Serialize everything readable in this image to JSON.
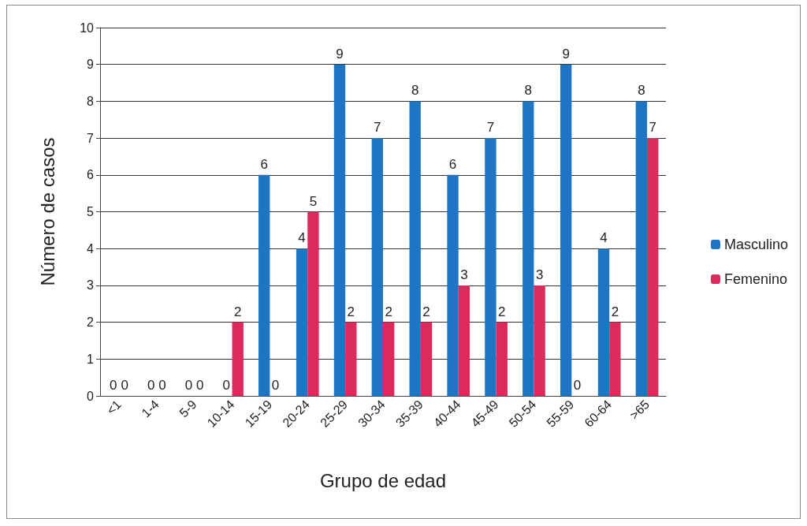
{
  "chart_data": {
    "type": "bar",
    "xlabel": "Grupo de edad",
    "ylabel": "Número de casos",
    "categories": [
      "<1",
      "1-4",
      "5-9",
      "10-14",
      "15-19",
      "20-24",
      "25-29",
      "30-34",
      "35-39",
      "40-44",
      "45-49",
      "50-54",
      "55-59",
      "60-64",
      ">65"
    ],
    "series": [
      {
        "name": "Masculino",
        "color": "#1f74c4",
        "values": [
          0,
          0,
          0,
          0,
          6,
          4,
          9,
          7,
          8,
          6,
          7,
          8,
          9,
          4,
          8
        ]
      },
      {
        "name": "Femenino",
        "color": "#dc2a5c",
        "values": [
          0,
          0,
          0,
          2,
          0,
          5,
          2,
          2,
          2,
          3,
          2,
          3,
          0,
          2,
          7
        ]
      }
    ],
    "ylim": [
      0,
      10
    ],
    "yticks": [
      0,
      1,
      2,
      3,
      4,
      5,
      6,
      7,
      8,
      9,
      10
    ],
    "grid": "y",
    "legend": "right",
    "data_labels": true
  }
}
